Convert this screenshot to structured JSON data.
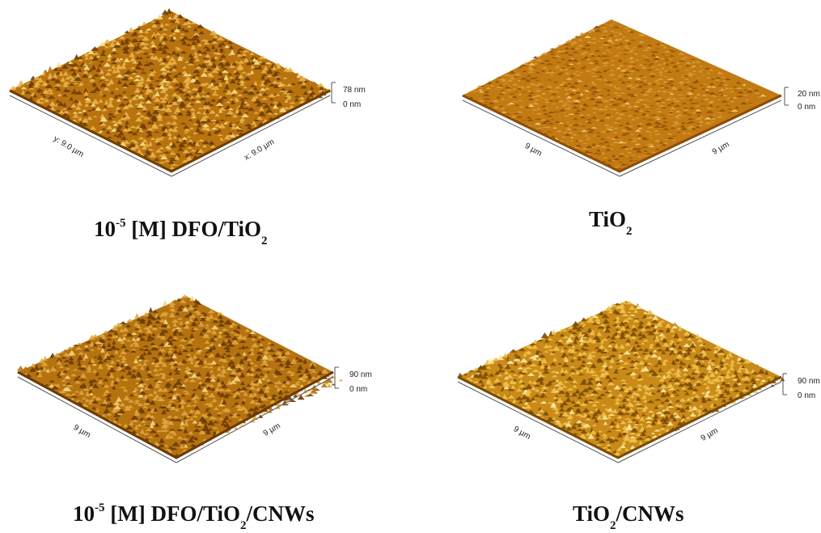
{
  "panels": [
    {
      "caption": {
        "prefix": "10",
        "sup": "-5",
        "middle": " [M] DFO/TiO",
        "sub": "2",
        "suffix": ""
      },
      "scale_top": "78 nm",
      "scale_bottom": "0 nm",
      "y_axis_label": "y: 9.0 µm",
      "x_axis_label": "x: 9.0 µm",
      "colors": {
        "base": "#b8730f",
        "dark": "#6e3d05",
        "light": "#e9b54b",
        "highlight": "#f6e08a"
      }
    },
    {
      "caption": {
        "prefix": "TiO",
        "sup": "",
        "middle": "",
        "sub": "2",
        "suffix": ""
      },
      "scale_top": "20 nm",
      "scale_bottom": "0 nm",
      "y_axis_label": "9 µm",
      "x_axis_label": "9 µm",
      "colors": {
        "base": "#c27a12",
        "dark": "#8a4d08",
        "light": "#dca03a",
        "highlight": "#f0d27a"
      }
    },
    {
      "caption": {
        "prefix": "10",
        "sup": "-5",
        "middle": " [M] DFO/TiO",
        "sub": "2",
        "suffix": "/CNWs"
      },
      "scale_top": "90 nm",
      "scale_bottom": "0 nm",
      "y_axis_label": "9 µm",
      "x_axis_label": "9 µm",
      "colors": {
        "base": "#b57310",
        "dark": "#6a3a04",
        "light": "#e0a63e",
        "highlight": "#f3d680"
      }
    },
    {
      "caption": {
        "prefix": "TiO",
        "sup": "",
        "middle": "",
        "sub": "2",
        "suffix": "/CNWs"
      },
      "scale_top": "90 nm",
      "scale_bottom": "0 nm",
      "y_axis_label": "9 µm",
      "x_axis_label": "9 µm",
      "colors": {
        "base": "#c98a18",
        "dark": "#7a4a06",
        "light": "#f0c24e",
        "highlight": "#fbeaa0"
      }
    }
  ]
}
